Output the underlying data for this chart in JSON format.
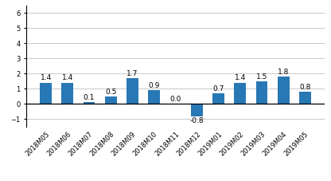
{
  "categories": [
    "2018M05",
    "2018M06",
    "2018M07",
    "2018M08",
    "2018M09",
    "2018M10",
    "2018M11",
    "2018M12",
    "2019M01",
    "2019M02",
    "2019M03",
    "2019M04",
    "2019M05"
  ],
  "values": [
    1.4,
    1.4,
    0.1,
    0.5,
    1.7,
    0.9,
    0.0,
    -0.8,
    0.7,
    1.4,
    1.5,
    1.8,
    0.8
  ],
  "bar_color": "#2878b5",
  "ylim": [
    -1.5,
    6.5
  ],
  "yticks": [
    -1,
    0,
    1,
    2,
    3,
    4,
    5,
    6
  ],
  "label_fontsize": 6.5,
  "tick_fontsize": 6.0,
  "bar_width": 0.55,
  "background_color": "#ffffff",
  "grid_color": "#c8c8c8"
}
